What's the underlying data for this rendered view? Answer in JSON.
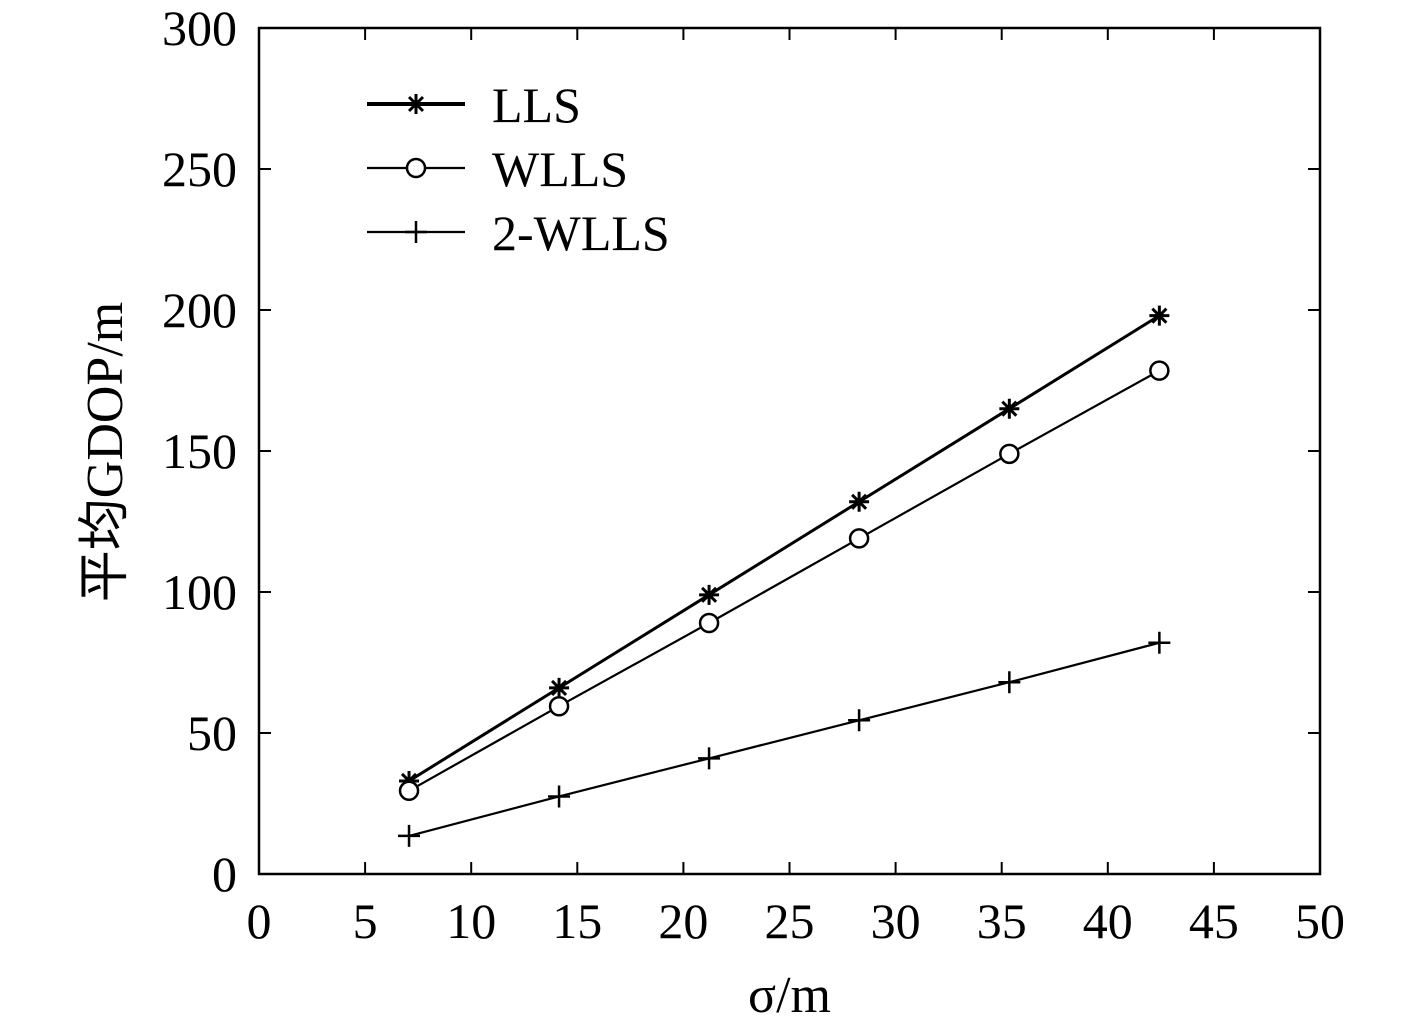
{
  "chart_data": {
    "type": "line",
    "title": "",
    "xlabel": "σ/m",
    "ylabel": "平均GDOP/m",
    "xlim": [
      0,
      50
    ],
    "ylim": [
      0,
      300
    ],
    "xticks": [
      0,
      5,
      10,
      15,
      20,
      25,
      30,
      35,
      40,
      45,
      50
    ],
    "yticks": [
      0,
      50,
      100,
      150,
      200,
      250,
      300
    ],
    "grid": false,
    "legend_position": "top-left",
    "x": [
      7.07,
      14.14,
      21.21,
      28.28,
      35.36,
      42.43
    ],
    "series": [
      {
        "name": "LLS",
        "marker": "asterisk",
        "values": [
          33,
          66,
          99,
          132,
          165,
          198
        ]
      },
      {
        "name": "WLLS",
        "marker": "circle",
        "values": [
          29.5,
          59.5,
          89,
          119,
          149,
          178.5
        ]
      },
      {
        "name": "2-WLLS",
        "marker": "plus",
        "values": [
          13.5,
          27.5,
          41,
          54.5,
          68,
          82
        ]
      }
    ],
    "colors": {
      "line": "#000000",
      "axis": "#000000",
      "background": "#ffffff"
    }
  }
}
